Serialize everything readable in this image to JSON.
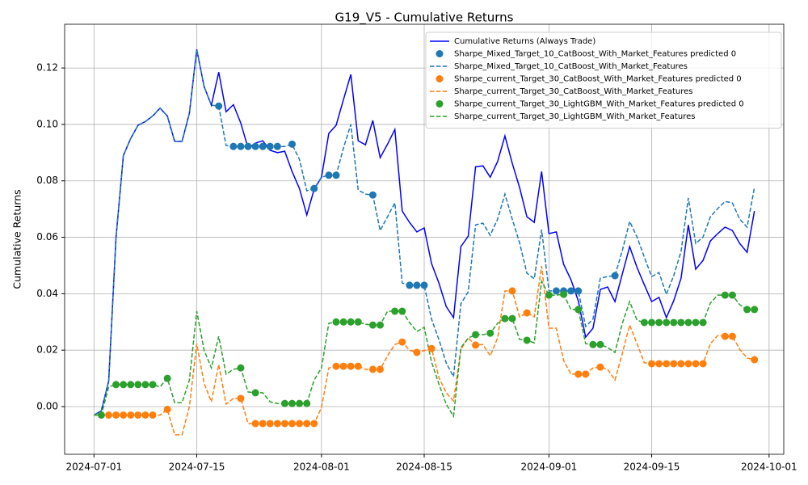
{
  "chart_data": {
    "type": "line",
    "title": "G19_V5 - Cumulative Returns",
    "ylabel": "Cumulative Returns",
    "x": [
      "2024-07-01",
      "2024-07-02",
      "2024-07-03",
      "2024-07-04",
      "2024-07-05",
      "2024-07-06",
      "2024-07-07",
      "2024-07-08",
      "2024-07-09",
      "2024-07-10",
      "2024-07-11",
      "2024-07-12",
      "2024-07-13",
      "2024-07-14",
      "2024-07-15",
      "2024-07-16",
      "2024-07-17",
      "2024-07-18",
      "2024-07-19",
      "2024-07-20",
      "2024-07-21",
      "2024-07-22",
      "2024-07-23",
      "2024-07-24",
      "2024-07-25",
      "2024-07-26",
      "2024-07-27",
      "2024-07-28",
      "2024-07-29",
      "2024-07-30",
      "2024-07-31",
      "2024-08-01",
      "2024-08-02",
      "2024-08-03",
      "2024-08-04",
      "2024-08-05",
      "2024-08-06",
      "2024-08-07",
      "2024-08-08",
      "2024-08-09",
      "2024-08-10",
      "2024-08-11",
      "2024-08-12",
      "2024-08-13",
      "2024-08-14",
      "2024-08-15",
      "2024-08-16",
      "2024-08-17",
      "2024-08-18",
      "2024-08-19",
      "2024-08-20",
      "2024-08-21",
      "2024-08-22",
      "2024-08-23",
      "2024-08-24",
      "2024-08-25",
      "2024-08-26",
      "2024-08-27",
      "2024-08-28",
      "2024-08-29",
      "2024-08-30",
      "2024-08-31",
      "2024-09-01",
      "2024-09-02",
      "2024-09-03",
      "2024-09-04",
      "2024-09-05",
      "2024-09-06",
      "2024-09-07",
      "2024-09-08",
      "2024-09-09",
      "2024-09-10",
      "2024-09-11",
      "2024-09-12",
      "2024-09-13",
      "2024-09-14",
      "2024-09-15",
      "2024-09-16",
      "2024-09-17",
      "2024-09-18",
      "2024-09-19",
      "2024-09-20",
      "2024-09-21",
      "2024-09-22",
      "2024-09-23",
      "2024-09-24",
      "2024-09-25",
      "2024-09-26",
      "2024-09-27",
      "2024-09-28",
      "2024-09-29"
    ],
    "xlim": [
      "2024-06-27",
      "2024-10-03"
    ],
    "xticks": [
      "2024-07-01",
      "2024-07-15",
      "2024-08-01",
      "2024-08-15",
      "2024-09-01",
      "2024-09-15",
      "2024-10-01"
    ],
    "ylim": [
      -0.0169,
      0.1355
    ],
    "yticks": [
      {
        "value": 0,
        "label": "0.00"
      },
      {
        "value": 0.02,
        "label": "0.02"
      },
      {
        "value": 0.04,
        "label": "0.04"
      },
      {
        "value": 0.06,
        "label": "0.06"
      },
      {
        "value": 0.08,
        "label": "0.08"
      },
      {
        "value": 0.1,
        "label": "0.10"
      },
      {
        "value": 0.12,
        "label": "0.12"
      }
    ],
    "grid": true,
    "legend": "upper right",
    "series": [
      {
        "name": "Cumulative Returns (Always Trade)",
        "color": "#0000ff",
        "style": "solid",
        "values": [
          -0.003,
          -0.0015,
          0.009,
          0.06,
          0.089,
          0.095,
          0.0997,
          0.101,
          0.103,
          0.1058,
          0.103,
          0.094,
          0.094,
          0.104,
          0.1266,
          0.1134,
          0.1068,
          0.1185,
          0.1045,
          0.107,
          0.1005,
          0.0916,
          0.0934,
          0.0942,
          0.0908,
          0.09,
          0.0905,
          0.0833,
          0.0773,
          0.0679,
          0.077,
          0.0813,
          0.0968,
          0.0997,
          0.1088,
          0.1177,
          0.0942,
          0.0928,
          0.1014,
          0.0882,
          0.093,
          0.0982,
          0.0693,
          0.0653,
          0.0619,
          0.0633,
          0.0507,
          0.0438,
          0.0355,
          0.0315,
          0.0567,
          0.0604,
          0.085,
          0.0853,
          0.0813,
          0.0868,
          0.0959,
          0.0862,
          0.0776,
          0.0673,
          0.0653,
          0.0833,
          0.0613,
          0.0619,
          0.0504,
          0.045,
          0.0375,
          0.0246,
          0.0278,
          0.0415,
          0.0424,
          0.0372,
          0.047,
          0.0567,
          0.0493,
          0.0432,
          0.0372,
          0.0387,
          0.0315,
          0.0375,
          0.0455,
          0.0644,
          0.0487,
          0.0518,
          0.0587,
          0.0613,
          0.0636,
          0.0624,
          0.0578,
          0.0547,
          0.0693
        ]
      },
      {
        "name": "Sharpe_Mixed_Target_10_CatBoost_With_Market_Features predicted 0",
        "color": "#1f77b4",
        "style": "markers",
        "x": [
          "2024-07-18",
          "2024-07-20",
          "2024-07-21",
          "2024-07-22",
          "2024-07-23",
          "2024-07-24",
          "2024-07-25",
          "2024-07-26",
          "2024-07-28",
          "2024-07-31",
          "2024-08-02",
          "2024-08-03",
          "2024-08-08",
          "2024-08-13",
          "2024-08-14",
          "2024-08-15",
          "2024-09-02",
          "2024-09-03",
          "2024-09-04",
          "2024-09-05",
          "2024-09-10"
        ],
        "values": [
          0.1065,
          0.0922,
          0.0922,
          0.0922,
          0.0922,
          0.0922,
          0.0922,
          0.0922,
          0.093,
          0.0773,
          0.082,
          0.082,
          0.075,
          0.043,
          0.043,
          0.043,
          0.041,
          0.041,
          0.041,
          0.041,
          0.0464
        ]
      },
      {
        "name": "Sharpe_Mixed_Target_10_CatBoost_With_Market_Features",
        "color": "#1f77b4",
        "style": "dashed",
        "values": [
          -0.003,
          -0.0015,
          0.009,
          0.06,
          0.089,
          0.095,
          0.0997,
          0.101,
          0.103,
          0.1058,
          0.103,
          0.094,
          0.094,
          0.104,
          0.1266,
          0.1134,
          0.1068,
          0.1065,
          0.0925,
          0.0922,
          0.0922,
          0.0922,
          0.0922,
          0.0922,
          0.0922,
          0.0922,
          0.0922,
          0.093,
          0.0876,
          0.0765,
          0.0773,
          0.0813,
          0.082,
          0.082,
          0.0916,
          0.1,
          0.0768,
          0.0753,
          0.075,
          0.0624,
          0.0673,
          0.0722,
          0.0438,
          0.043,
          0.043,
          0.043,
          0.031,
          0.0238,
          0.0155,
          0.0106,
          0.0364,
          0.0407,
          0.0644,
          0.065,
          0.0607,
          0.0664,
          0.0753,
          0.0664,
          0.058,
          0.0473,
          0.0453,
          0.0627,
          0.041,
          0.041,
          0.041,
          0.041,
          0.041,
          0.0284,
          0.031,
          0.0455,
          0.0461,
          0.0464,
          0.0553,
          0.0656,
          0.0601,
          0.053,
          0.0461,
          0.0475,
          0.0398,
          0.0464,
          0.055,
          0.0739,
          0.0578,
          0.0601,
          0.0673,
          0.0702,
          0.0727,
          0.0722,
          0.0664,
          0.0636,
          0.0776
        ]
      },
      {
        "name": "Sharpe_current_Target_30_CatBoost_With_Market_Features predicted 0",
        "color": "#ff7f0e",
        "style": "markers",
        "x": [
          "2024-07-03",
          "2024-07-04",
          "2024-07-05",
          "2024-07-06",
          "2024-07-07",
          "2024-07-08",
          "2024-07-09",
          "2024-07-11",
          "2024-07-21",
          "2024-07-23",
          "2024-07-24",
          "2024-07-25",
          "2024-07-26",
          "2024-07-27",
          "2024-07-28",
          "2024-07-29",
          "2024-07-30",
          "2024-07-31",
          "2024-08-03",
          "2024-08-04",
          "2024-08-05",
          "2024-08-06",
          "2024-08-08",
          "2024-08-09",
          "2024-08-12",
          "2024-08-14",
          "2024-08-16",
          "2024-08-22",
          "2024-08-27",
          "2024-08-29",
          "2024-09-05",
          "2024-09-06",
          "2024-09-08",
          "2024-09-15",
          "2024-09-16",
          "2024-09-17",
          "2024-09-18",
          "2024-09-19",
          "2024-09-20",
          "2024-09-21",
          "2024-09-22",
          "2024-09-25",
          "2024-09-26",
          "2024-09-29"
        ],
        "values": [
          -0.003,
          -0.003,
          -0.003,
          -0.003,
          -0.003,
          -0.003,
          -0.003,
          -0.001,
          0.0029,
          -0.006,
          -0.006,
          -0.006,
          -0.006,
          -0.006,
          -0.006,
          -0.006,
          -0.006,
          -0.006,
          0.0143,
          0.0143,
          0.0143,
          0.0143,
          0.0132,
          0.0132,
          0.0229,
          0.0192,
          0.0206,
          0.0218,
          0.041,
          0.0332,
          0.0115,
          0.0115,
          0.014,
          0.0152,
          0.0152,
          0.0152,
          0.0152,
          0.0152,
          0.0152,
          0.0152,
          0.0152,
          0.0249,
          0.0249,
          0.0166
        ]
      },
      {
        "name": "Sharpe_current_Target_30_CatBoost_With_Market_Features",
        "color": "#ff7f0e",
        "style": "dashed",
        "values": [
          -0.003,
          -0.003,
          -0.003,
          -0.003,
          -0.003,
          -0.003,
          -0.003,
          -0.003,
          -0.003,
          -0.003,
          -0.001,
          -0.01,
          -0.01,
          0,
          0.0223,
          0.0083,
          0.0017,
          0.0149,
          0.0009,
          0.0029,
          0.0029,
          -0.006,
          -0.006,
          -0.006,
          -0.006,
          -0.006,
          -0.006,
          -0.006,
          -0.006,
          -0.006,
          -0.006,
          -0.0003,
          0.0137,
          0.0143,
          0.0143,
          0.0143,
          0.0143,
          0.0132,
          0.0132,
          0.0132,
          0.018,
          0.022,
          0.0229,
          0.02,
          0.0192,
          0.0198,
          0.0206,
          0.0103,
          0.0049,
          0.002,
          0.0203,
          0.0243,
          0.0218,
          0.022,
          0.018,
          0.0243,
          0.041,
          0.041,
          0.0318,
          0.0332,
          0.0318,
          0.0498,
          0.0278,
          0.0278,
          0.0163,
          0.0115,
          0.0115,
          0.0115,
          0.0137,
          0.014,
          0.0132,
          0.0094,
          0.0189,
          0.0289,
          0.0223,
          0.0155,
          0.0152,
          0.0152,
          0.0152,
          0.0152,
          0.0152,
          0.0152,
          0.0152,
          0.0152,
          0.0223,
          0.0252,
          0.0249,
          0.0249,
          0.0203,
          0.0172,
          0.0166
        ]
      },
      {
        "name": "Sharpe_current_Target_30_LightGBM_With_Market_Features predicted 0",
        "color": "#2ca02c",
        "style": "markers",
        "x": [
          "2024-07-02",
          "2024-07-04",
          "2024-07-05",
          "2024-07-06",
          "2024-07-07",
          "2024-07-08",
          "2024-07-09",
          "2024-07-11",
          "2024-07-21",
          "2024-07-23",
          "2024-07-27",
          "2024-07-28",
          "2024-07-29",
          "2024-07-30",
          "2024-08-03",
          "2024-08-04",
          "2024-08-05",
          "2024-08-06",
          "2024-08-08",
          "2024-08-09",
          "2024-08-11",
          "2024-08-12",
          "2024-08-22",
          "2024-08-24",
          "2024-08-26",
          "2024-08-27",
          "2024-08-29",
          "2024-09-01",
          "2024-09-03",
          "2024-09-05",
          "2024-09-07",
          "2024-09-08",
          "2024-09-14",
          "2024-09-15",
          "2024-09-16",
          "2024-09-17",
          "2024-09-18",
          "2024-09-19",
          "2024-09-20",
          "2024-09-21",
          "2024-09-22",
          "2024-09-25",
          "2024-09-26",
          "2024-09-28",
          "2024-09-29"
        ],
        "values": [
          -0.003,
          0.0078,
          0.0078,
          0.0078,
          0.0078,
          0.0078,
          0.0078,
          0.01,
          0.0137,
          0.0049,
          0.0011,
          0.0011,
          0.0011,
          0.0011,
          0.03,
          0.03,
          0.03,
          0.03,
          0.0289,
          0.0289,
          0.0338,
          0.0338,
          0.0255,
          0.026,
          0.0312,
          0.0312,
          0.0235,
          0.0395,
          0.0398,
          0.0344,
          0.022,
          0.022,
          0.0298,
          0.0298,
          0.0298,
          0.0298,
          0.0298,
          0.0298,
          0.0298,
          0.0298,
          0.0298,
          0.0395,
          0.0395,
          0.0344,
          0.0344
        ]
      },
      {
        "name": "Sharpe_current_Target_30_LightGBM_With_Market_Features",
        "color": "#2ca02c",
        "style": "dashed",
        "values": [
          -0.003,
          -0.003,
          0.007,
          0.0078,
          0.0078,
          0.0078,
          0.0078,
          0.0078,
          0.0078,
          0.007,
          0.01,
          0.0014,
          0.0014,
          0.0094,
          0.0338,
          0.02,
          0.0137,
          0.0249,
          0.0115,
          0.0132,
          0.0137,
          0.0052,
          0.0049,
          0.0049,
          0.0017,
          0.0011,
          0.0011,
          0.0011,
          0.0011,
          0.0011,
          0.0094,
          0.0137,
          0.0295,
          0.03,
          0.03,
          0.03,
          0.03,
          0.0292,
          0.0289,
          0.0289,
          0.0338,
          0.0338,
          0.0338,
          0.0298,
          0.0266,
          0.0281,
          0.0158,
          0.008,
          0.0009,
          -0.0034,
          0.0209,
          0.0243,
          0.0255,
          0.0255,
          0.026,
          0.0295,
          0.0312,
          0.0312,
          0.0238,
          0.0235,
          0.0226,
          0.0444,
          0.0395,
          0.0395,
          0.0398,
          0.0344,
          0.0344,
          0.0223,
          0.022,
          0.022,
          0.0209,
          0.0192,
          0.0295,
          0.0372,
          0.0306,
          0.0298,
          0.0298,
          0.0298,
          0.0298,
          0.0298,
          0.0298,
          0.0298,
          0.0298,
          0.0298,
          0.0367,
          0.0395,
          0.0395,
          0.0395,
          0.0361,
          0.0344,
          0.0344
        ]
      }
    ]
  }
}
